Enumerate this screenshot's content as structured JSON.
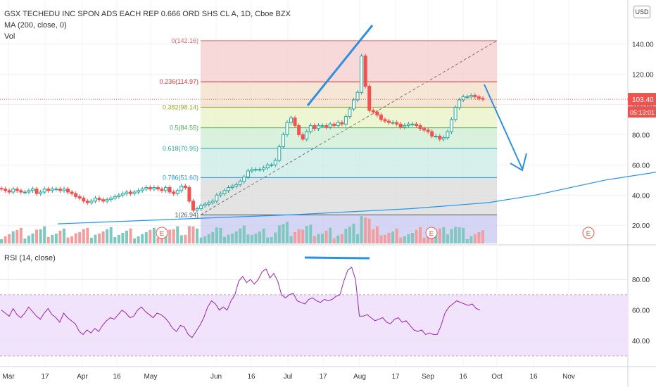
{
  "header": {
    "title": "GSX TECHEDU INC SPON ADS EACH REP 0.666 ORD SHS CL A, 1D, Cboe BZX",
    "ma_label": "MA (200, close, 0)",
    "vol_label": "Vol",
    "rsi_label": "RSI (14, close)",
    "currency": "USD"
  },
  "chart_data": [
    {
      "type": "candlestick",
      "title": "GSX TECHEDU INC SPON ADS EACH REP 0.666 ORD SHS CL A, 1D, Cboe BZX",
      "price_axis": {
        "ticks": [
          "140.00",
          "120.00",
          "100.00",
          "80.00",
          "60.00",
          "40.00",
          "20.00"
        ],
        "ylim": [
          8,
          150
        ]
      },
      "time_axis": {
        "ticks": [
          "Mar",
          "17",
          "Apr",
          "16",
          "May",
          "Jun",
          "16",
          "Jul",
          "17",
          "Aug",
          "17",
          "Sep",
          "16",
          "Oct",
          "16",
          "Nov"
        ]
      },
      "last_price": "103.40",
      "countdown": "05:13:01",
      "fib_levels": [
        {
          "label": "0(142.16)",
          "value": 142.16,
          "color": "#e06666"
        },
        {
          "label": "0.236(114.97)",
          "value": 114.97,
          "color": "#cc3333"
        },
        {
          "label": "0.382(98.14)",
          "value": 98.14,
          "color": "#8fae1f"
        },
        {
          "label": "0.5(84.55)",
          "value": 84.55,
          "color": "#4caf50"
        },
        {
          "label": "0.618(70.95)",
          "value": 70.95,
          "color": "#26a69a"
        },
        {
          "label": "0.786(51.60)",
          "value": 51.6,
          "color": "#2196f3"
        },
        {
          "label": "1(26.94)",
          "value": 26.94,
          "color": "#555555"
        }
      ],
      "close_series": [
        44,
        43,
        42,
        44,
        43,
        42,
        42,
        43,
        44,
        41,
        42,
        44,
        43,
        44,
        44,
        43,
        44,
        42,
        41,
        39,
        38,
        36,
        35,
        36,
        38,
        37,
        36,
        37,
        38,
        39,
        40,
        41,
        42,
        41,
        42,
        43,
        44,
        45,
        44,
        45,
        44,
        43,
        45,
        42,
        41,
        43,
        46,
        45,
        36,
        30,
        31,
        33,
        34,
        35,
        36,
        40,
        41,
        43,
        45,
        46,
        47,
        49,
        52,
        56,
        57,
        57,
        57,
        58,
        60,
        60,
        63,
        72,
        80,
        88,
        91,
        86,
        80,
        77,
        82,
        86,
        84,
        86,
        86,
        85,
        87,
        86,
        88,
        87,
        92,
        97,
        103,
        108,
        132,
        112,
        96,
        95,
        93,
        90,
        89,
        88,
        88,
        87,
        85,
        86,
        87,
        87,
        86,
        84,
        83,
        82,
        79,
        79,
        77,
        78,
        82,
        90,
        98,
        103,
        105,
        105,
        106,
        105,
        104,
        103.4
      ],
      "ma200": {
        "start": [
          40,
          10
        ],
        "end": [
          200,
          45
        ],
        "points": [
          [
            0,
            21
          ],
          [
            30,
            24
          ],
          [
            60,
            27
          ],
          [
            90,
            31
          ],
          [
            110,
            35
          ],
          [
            122,
            40
          ],
          [
            140,
            50
          ],
          [
            160,
            58
          ]
        ]
      },
      "events": [
        {
          "label": "E"
        },
        {
          "label": "E"
        },
        {
          "label": "E"
        }
      ]
    },
    {
      "type": "line",
      "title": "RSI (14, close)",
      "ticks": [
        "80.00",
        "60.00",
        "40.00"
      ],
      "ylim": [
        25,
        92
      ],
      "band": [
        30,
        70
      ],
      "values": [
        60,
        58,
        56,
        61,
        57,
        55,
        58,
        62,
        59,
        56,
        54,
        58,
        61,
        57,
        55,
        52,
        58,
        55,
        53,
        51,
        46,
        44,
        47,
        45,
        48,
        46,
        50,
        53,
        55,
        54,
        57,
        60,
        58,
        55,
        56,
        60,
        62,
        59,
        57,
        55,
        58,
        57,
        55,
        52,
        48,
        46,
        50,
        49,
        44,
        42,
        46,
        50,
        55,
        62,
        66,
        64,
        60,
        62,
        60,
        66,
        70,
        79,
        82,
        78,
        80,
        77,
        80,
        85,
        87,
        81,
        84,
        79,
        70,
        68,
        70,
        71,
        66,
        65,
        64,
        67,
        68,
        66,
        65,
        67,
        66,
        67,
        69,
        70,
        79,
        86,
        88,
        80,
        56,
        56,
        57,
        55,
        53,
        54,
        55,
        52,
        51,
        54,
        55,
        52,
        53,
        50,
        47,
        46,
        47,
        44,
        45,
        44,
        44,
        50,
        58,
        62,
        64,
        66,
        65,
        64,
        63,
        64,
        61,
        60
      ]
    }
  ],
  "colors": {
    "up": "#26a69a",
    "down": "#ef5350",
    "ma": "#2196f3",
    "rsi": "#9c27b0",
    "annotation": "#2f8fe0"
  }
}
